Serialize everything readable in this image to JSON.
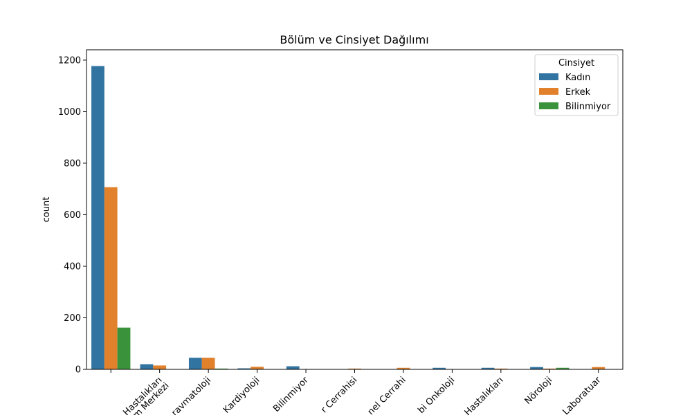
{
  "chart_data": {
    "type": "bar",
    "title": "Bölüm ve Cinsiyet Dağılımı",
    "xlabel": "",
    "ylabel": "count",
    "ylim": [
      0,
      1240
    ],
    "yticks": [
      0,
      200,
      400,
      600,
      800,
      1000,
      1200
    ],
    "categories": [
      "Check-Up Merkezi",
      "Kalp ve Damar Hastalıkları",
      "Romatoloji-Travmatoloji",
      "Kardiyoloji",
      "Bilinmiyor",
      "Kalp ve Damar Cerrahisi",
      "Genel Cerrahi",
      "Tıbbi Onkoloji",
      "İç Hastalıkları",
      "Nöroloji",
      "Laboratuar"
    ],
    "tick_labels_visible": [
      "",
      "Hastalıkları\nm Merkezi",
      "ravmatoloji",
      "Kardiyoloji",
      "Bilinmiyor",
      "r Cerrahisi",
      "nel Cerrahi",
      "bi Onkoloji",
      "Hastalıkları",
      "Nöroloji",
      "Laboratuar"
    ],
    "series": [
      {
        "name": "Kadın",
        "color": "#3274a1",
        "values": [
          1177,
          20,
          45,
          4,
          12,
          0,
          0,
          6,
          6,
          9,
          0
        ]
      },
      {
        "name": "Erkek",
        "color": "#e1812c",
        "values": [
          707,
          15,
          45,
          10,
          0,
          3,
          6,
          0,
          3,
          3,
          9
        ]
      },
      {
        "name": "Bilinmiyor",
        "color": "#3a923a",
        "values": [
          162,
          0,
          3,
          0,
          0,
          0,
          0,
          0,
          0,
          6,
          0
        ]
      }
    ],
    "legend": {
      "title": "Cinsiyet",
      "position": "top-right"
    },
    "grid": false
  }
}
